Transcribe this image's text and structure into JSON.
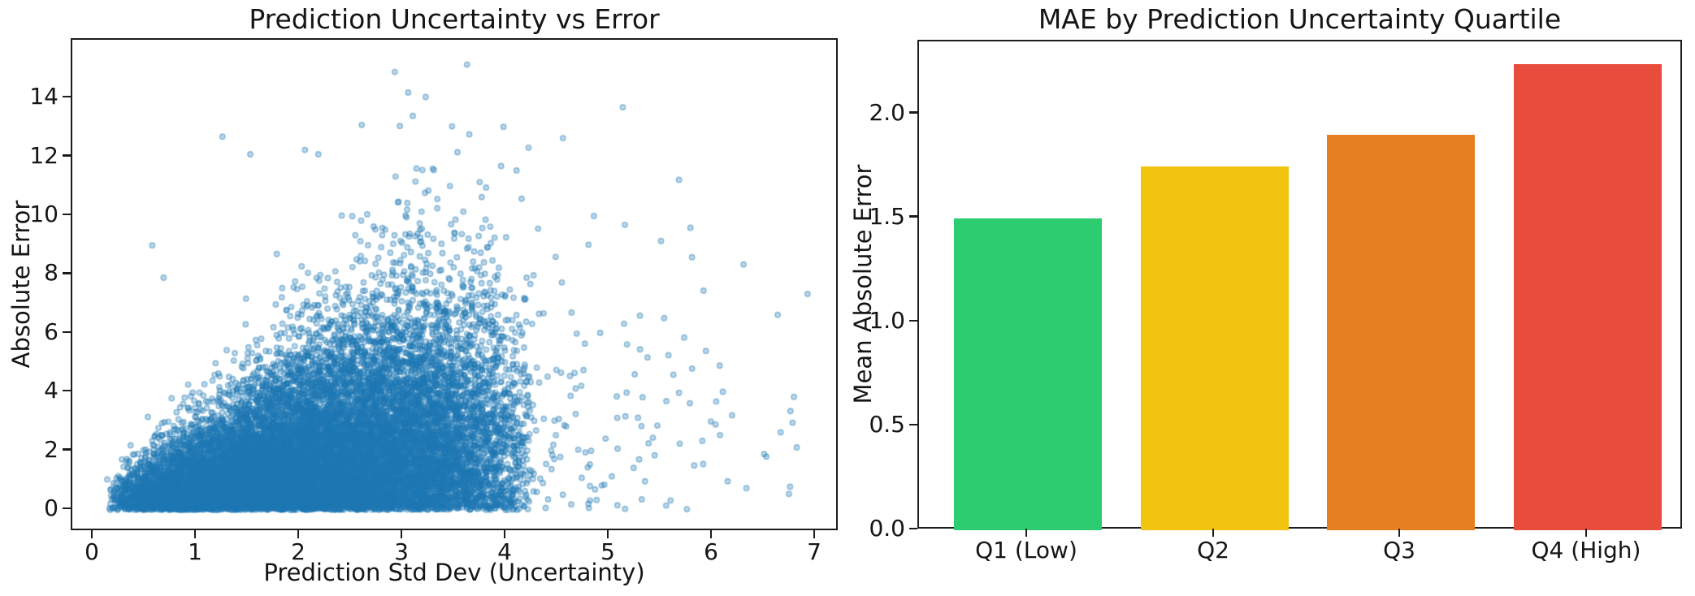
{
  "figure": {
    "background": "#ffffff",
    "text_color": "#151515",
    "spine_color": "#1c1c1c"
  },
  "chart_data": [
    {
      "type": "scatter",
      "title": "Prediction Uncertainty vs Error",
      "xlabel": "Prediction Std Dev (Uncertainty)",
      "ylabel": "Absolute Error",
      "xlim": [
        -0.22,
        7.26
      ],
      "ylim": [
        -0.76,
        16.0
      ],
      "x_ticks": [
        0,
        1,
        2,
        3,
        4,
        5,
        6,
        7
      ],
      "x_tick_labels": [
        "0",
        "1",
        "2",
        "3",
        "4",
        "5",
        "6",
        "7"
      ],
      "y_ticks": [
        0,
        2,
        4,
        6,
        8,
        10,
        12,
        14
      ],
      "y_tick_labels": [
        "0",
        "2",
        "4",
        "6",
        "8",
        "10",
        "12",
        "14"
      ],
      "grid": false,
      "legend": "none",
      "marker": {
        "color": "#1f77b4",
        "alpha": 0.3,
        "edge_alpha": 0.45,
        "radius_px": 3.2
      },
      "points": {
        "n": 16000,
        "seed": 42,
        "note": "dense dome: x mostly 0.15-4.2 (mode ~2.3, sparse tail to ~6.9); y = |error| heteroscedastic, spread grows with x, dense mass to ~7, rare outliers to ~15.2",
        "x_model": {
          "offset": 0.12,
          "beta_span": 4.15,
          "tail_prob": 0.055,
          "tail_scale": 0.85,
          "x_min": 0.13,
          "x_max": 6.95
        },
        "y_model": {
          "sigma_base": 0.32,
          "sigma_slope": 1.05,
          "sigma_x_cap": 3.1,
          "y_max": 15.3
        }
      },
      "outlier_points": [
        [
          0.57,
          9.0
        ],
        [
          0.68,
          7.9
        ],
        [
          1.25,
          12.7
        ],
        [
          1.52,
          12.1
        ],
        [
          2.05,
          12.25
        ],
        [
          2.18,
          12.1
        ],
        [
          2.6,
          13.1
        ],
        [
          2.92,
          14.9
        ],
        [
          3.05,
          14.2
        ],
        [
          3.22,
          14.05
        ],
        [
          3.62,
          15.15
        ],
        [
          3.95,
          11.7
        ],
        [
          4.1,
          11.55
        ],
        [
          4.55,
          12.65
        ],
        [
          5.13,
          13.7
        ],
        [
          5.15,
          9.7
        ],
        [
          4.85,
          10.0
        ],
        [
          5.5,
          9.15
        ],
        [
          5.8,
          8.6
        ],
        [
          6.3,
          8.35
        ],
        [
          6.92,
          7.35
        ],
        [
          6.5,
          1.9
        ],
        [
          5.62,
          4.6
        ],
        [
          5.55,
          0.15
        ],
        [
          5.9,
          2.35
        ]
      ]
    },
    {
      "type": "bar",
      "title": "MAE by Prediction Uncertainty Quartile",
      "xlabel": "",
      "ylabel": "Mean Absolute Error",
      "categories": [
        "Q1 (Low)",
        "Q2",
        "Q3",
        "Q4 (High)"
      ],
      "values": [
        1.5,
        1.75,
        1.9,
        2.24
      ],
      "colors": [
        "#2ecc71",
        "#f1c40f",
        "#e67e22",
        "#e74c3c"
      ],
      "ylim": [
        0,
        2.35
      ],
      "y_ticks": [
        0.0,
        0.5,
        1.0,
        1.5,
        2.0
      ],
      "y_tick_labels": [
        "0.0",
        "0.5",
        "1.0",
        "1.5",
        "2.0"
      ],
      "grid": false,
      "legend": "none"
    }
  ]
}
